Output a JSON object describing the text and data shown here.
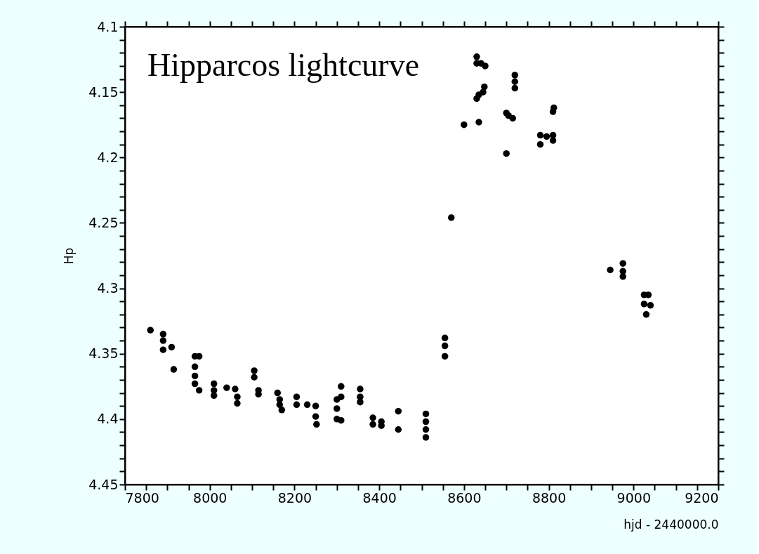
{
  "chart_data": {
    "type": "scatter",
    "title": "Hipparcos lightcurve",
    "xlabel": "hjd - 2440000.0",
    "ylabel": "Hp",
    "marker": "circle",
    "grid": false,
    "legend": false,
    "x": [
      7860,
      7890,
      7890,
      7890,
      7910,
      7915,
      7965,
      7965,
      7965,
      7965,
      7975,
      7975,
      8010,
      8010,
      8010,
      8040,
      8060,
      8065,
      8065,
      8105,
      8105,
      8115,
      8115,
      8160,
      8165,
      8170,
      8165,
      8205,
      8205,
      8230,
      8250,
      8250,
      8252,
      8300,
      8300,
      8300,
      8310,
      8310,
      8310,
      8355,
      8355,
      8355,
      8385,
      8385,
      8405,
      8405,
      8445,
      8445,
      8510,
      8510,
      8510,
      8510,
      8555,
      8555,
      8555,
      8570,
      8600,
      8630,
      8630,
      8640,
      8650,
      8630,
      8635,
      8645,
      8648,
      8635,
      8700,
      8705,
      8715,
      8700,
      8720,
      8720,
      8720,
      8780,
      8780,
      8795,
      8810,
      8810,
      8810,
      8812,
      8945,
      8975,
      8975,
      8975,
      9025,
      9025,
      9030,
      9035,
      9040
    ],
    "series": [
      {
        "color": "#000000",
        "values": [
          4.332,
          4.335,
          4.34,
          4.347,
          4.345,
          4.362,
          4.352,
          4.36,
          4.367,
          4.373,
          4.352,
          4.378,
          4.373,
          4.382,
          4.378,
          4.376,
          4.377,
          4.383,
          4.388,
          4.363,
          4.368,
          4.378,
          4.381,
          4.38,
          4.385,
          4.393,
          4.389,
          4.383,
          4.389,
          4.389,
          4.39,
          4.398,
          4.404,
          4.385,
          4.392,
          4.4,
          4.375,
          4.383,
          4.401,
          4.377,
          4.383,
          4.387,
          4.399,
          4.404,
          4.402,
          4.405,
          4.394,
          4.408,
          4.396,
          4.402,
          4.408,
          4.414,
          4.338,
          4.344,
          4.352,
          4.246,
          4.175,
          4.123,
          4.128,
          4.128,
          4.13,
          4.155,
          4.152,
          4.15,
          4.146,
          4.173,
          4.166,
          4.168,
          4.17,
          4.197,
          4.137,
          4.142,
          4.147,
          4.183,
          4.19,
          4.184,
          4.165,
          4.183,
          4.187,
          4.162,
          4.286,
          4.281,
          4.287,
          4.291,
          4.305,
          4.312,
          4.32,
          4.305,
          4.313
        ]
      }
    ],
    "xlim": [
      7800,
      9200
    ],
    "xticks": [
      7800,
      {
        "value": 7850,
        "label": null
      },
      {
        "value": 7900,
        "label": null
      },
      {
        "value": 7950,
        "label": null
      },
      8000,
      {
        "value": 8050,
        "label": null
      },
      {
        "value": 8100,
        "label": null
      },
      {
        "value": 8150,
        "label": null
      },
      8200,
      {
        "value": 8250,
        "label": null
      },
      {
        "value": 8300,
        "label": null
      },
      {
        "value": 8350,
        "label": null
      },
      8400,
      {
        "value": 8450,
        "label": null
      },
      {
        "value": 8500,
        "label": null
      },
      {
        "value": 8550,
        "label": null
      },
      8600,
      {
        "value": 8650,
        "label": null
      },
      {
        "value": 8700,
        "label": null
      },
      {
        "value": 8750,
        "label": null
      },
      8800,
      {
        "value": 8850,
        "label": null
      },
      {
        "value": 8900,
        "label": null
      },
      {
        "value": 8950,
        "label": null
      },
      9000,
      {
        "value": 9050,
        "label": null
      },
      {
        "value": 9100,
        "label": null
      },
      {
        "value": 9150,
        "label": null
      },
      9200
    ],
    "ylim": [
      4.45,
      4.1
    ],
    "yticks": [
      4.1,
      {
        "value": 4.11,
        "label": null
      },
      {
        "value": 4.12,
        "label": null
      },
      {
        "value": 4.13,
        "label": null
      },
      {
        "value": 4.14,
        "label": null
      },
      4.15,
      {
        "value": 4.16,
        "label": null
      },
      {
        "value": 4.17,
        "label": null
      },
      {
        "value": 4.18,
        "label": null
      },
      {
        "value": 4.19,
        "label": null
      },
      4.2,
      {
        "value": 4.21,
        "label": null
      },
      {
        "value": 4.22,
        "label": null
      },
      {
        "value": 4.23,
        "label": null
      },
      {
        "value": 4.24,
        "label": null
      },
      4.25,
      {
        "value": 4.26,
        "label": null
      },
      {
        "value": 4.27,
        "label": null
      },
      {
        "value": 4.28,
        "label": null
      },
      {
        "value": 4.29,
        "label": null
      },
      4.3,
      {
        "value": 4.31,
        "label": null
      },
      {
        "value": 4.32,
        "label": null
      },
      {
        "value": 4.33,
        "label": null
      },
      {
        "value": 4.34,
        "label": null
      },
      4.35,
      {
        "value": 4.36,
        "label": null
      },
      {
        "value": 4.37,
        "label": null
      },
      {
        "value": 4.38,
        "label": null
      },
      {
        "value": 4.39,
        "label": null
      },
      4.4,
      {
        "value": 4.41,
        "label": null
      },
      {
        "value": 4.42,
        "label": null
      },
      {
        "value": 4.43,
        "label": null
      },
      {
        "value": 4.44,
        "label": null
      },
      4.45
    ]
  }
}
